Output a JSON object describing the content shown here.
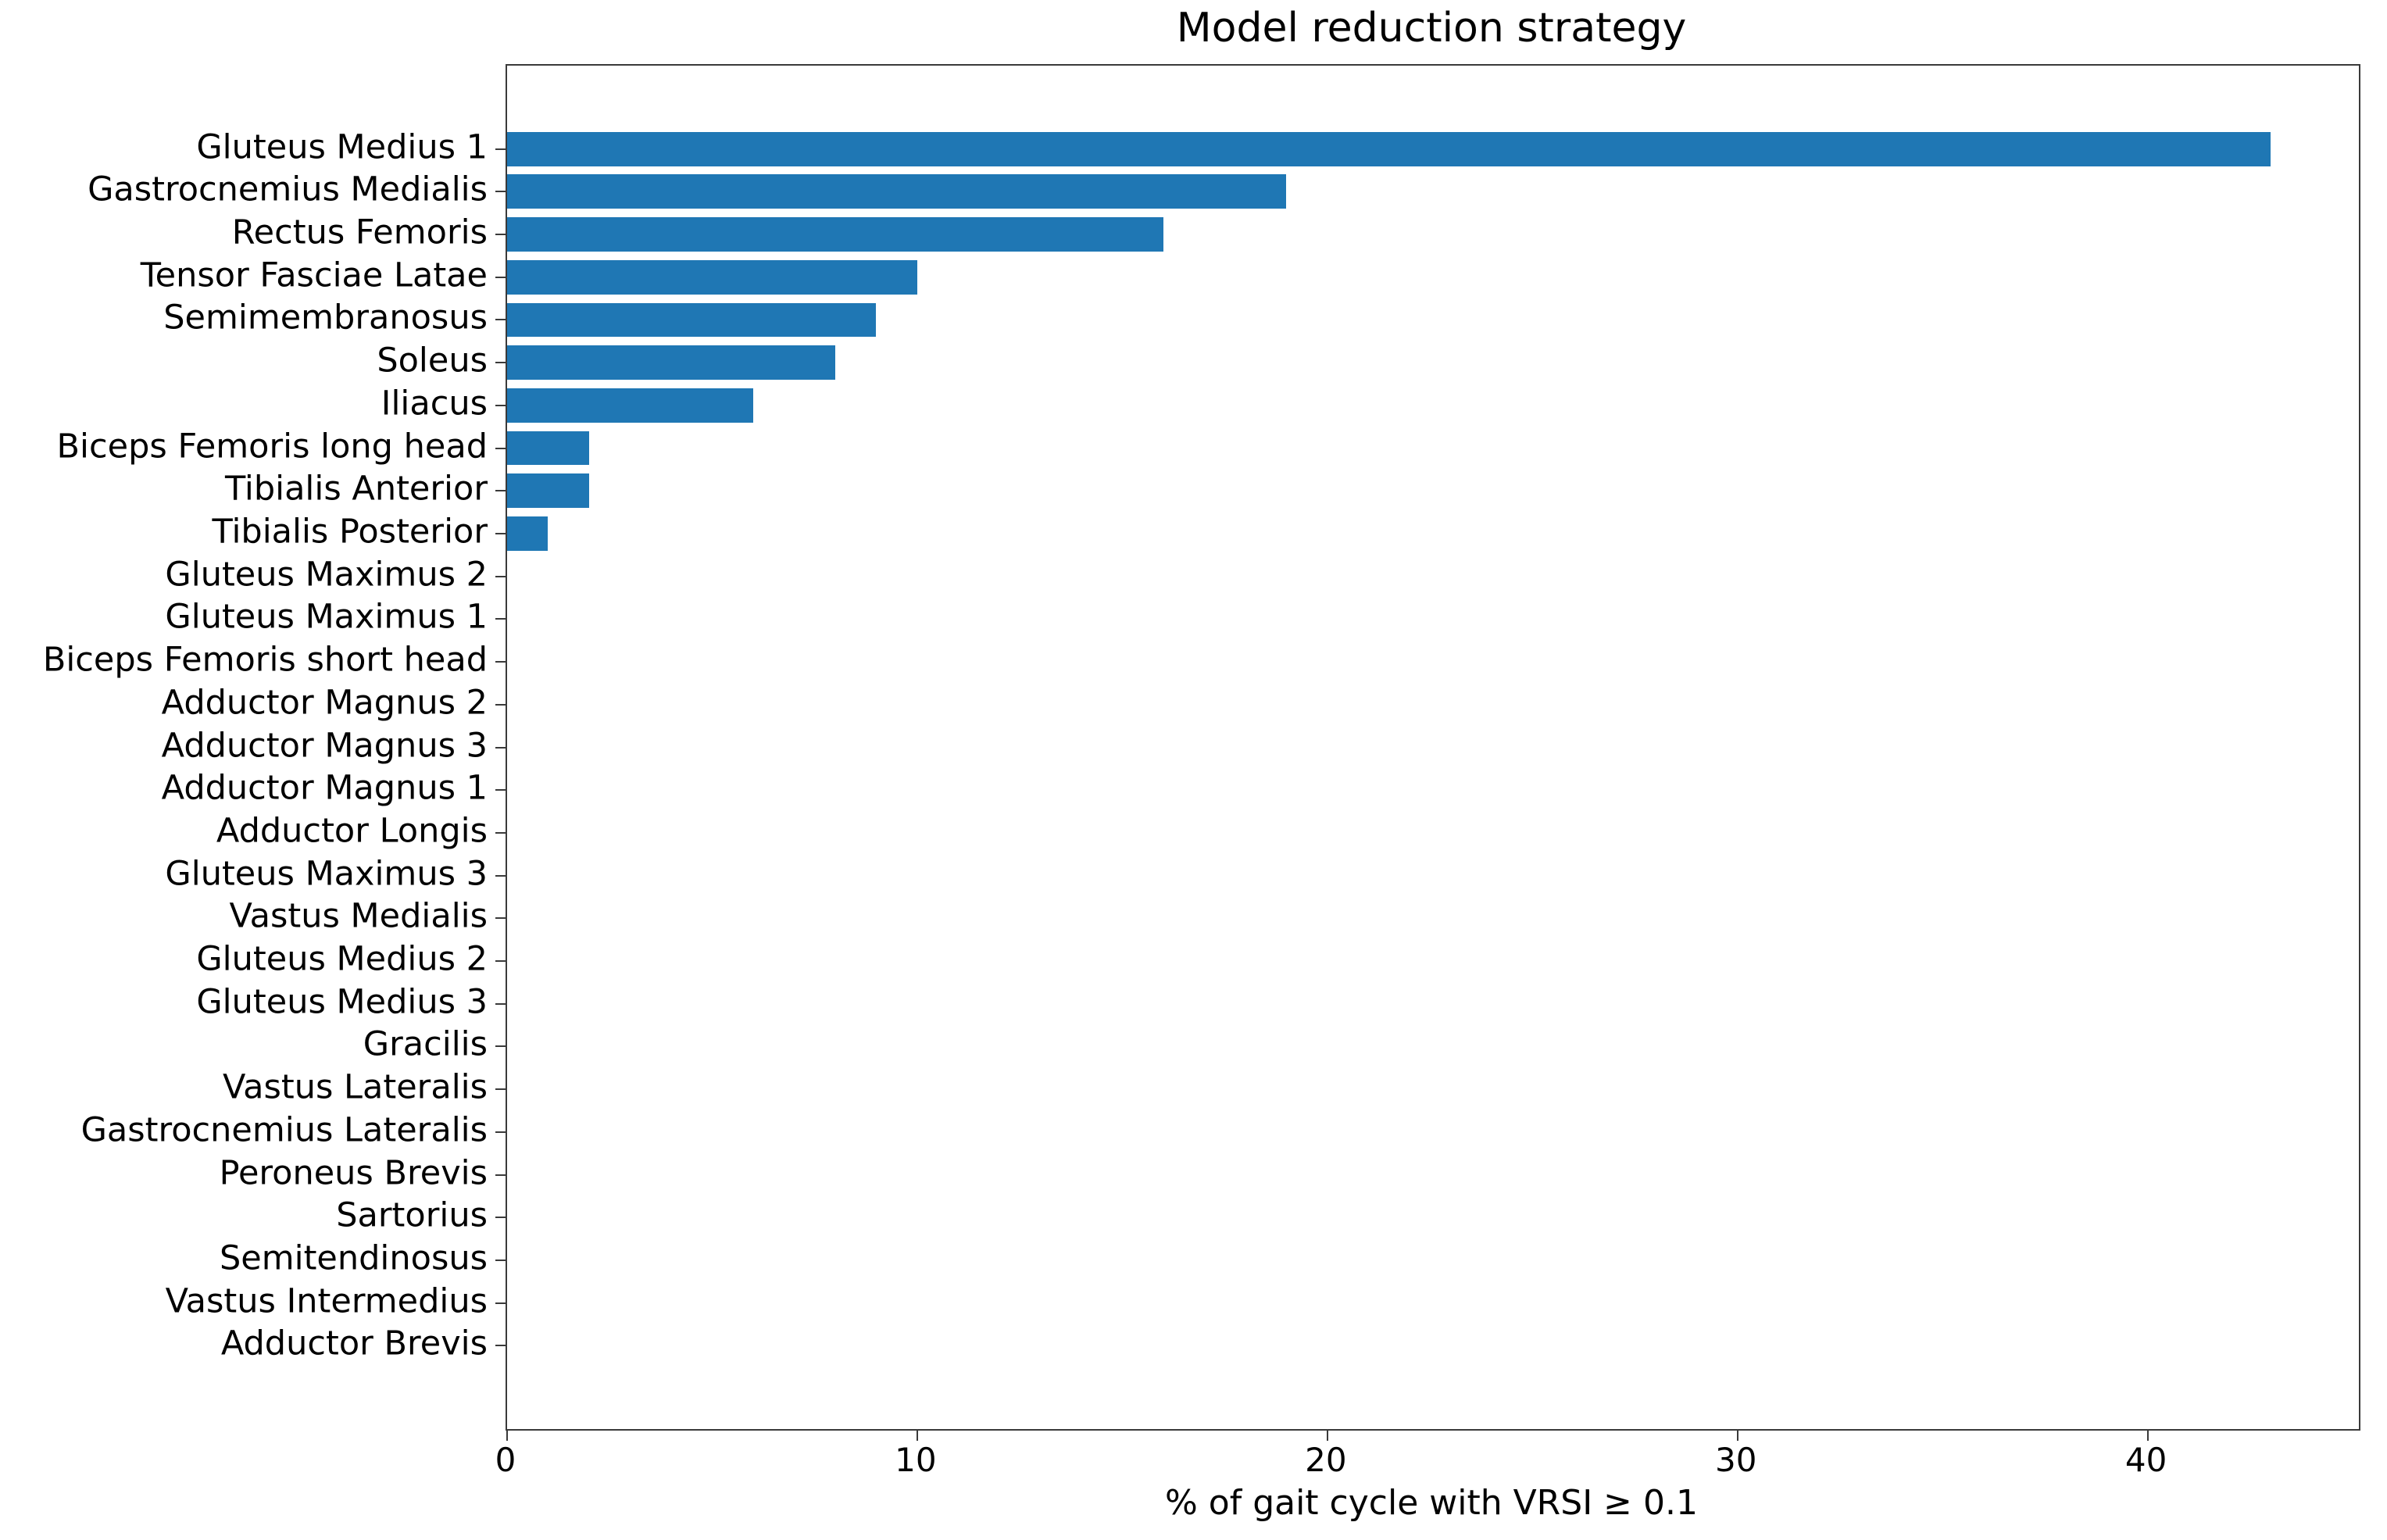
{
  "title": "Model reduction strategy",
  "x_axis_label": "% of gait cycle with VRSI ≥ 0.1",
  "chart_data": {
    "type": "bar",
    "orientation": "horizontal",
    "title": "Model reduction strategy",
    "xlabel": "% of gait cycle with VRSI ≥ 0.1",
    "ylabel": "",
    "categories": [
      "Gluteus Medius 1",
      "Gastrocnemius Medialis",
      "Rectus Femoris",
      "Tensor Fasciae Latae",
      "Semimembranosus",
      "Soleus",
      "Iliacus",
      "Biceps Femoris long head",
      "Tibialis Anterior",
      "Tibialis Posterior",
      "Gluteus Maximus 2",
      "Gluteus Maximus 1",
      "Biceps Femoris short head",
      "Adductor Magnus 2",
      "Adductor Magnus 3",
      "Adductor Magnus 1",
      "Adductor Longis",
      "Gluteus Maximus 3",
      "Vastus Medialis",
      "Gluteus Medius 2",
      "Gluteus Medius 3",
      "Gracilis",
      "Vastus Lateralis",
      "Gastrocnemius Lateralis",
      "Peroneus Brevis",
      "Sartorius",
      "Semitendinosus",
      "Vastus Intermedius",
      "Adductor Brevis"
    ],
    "values": [
      43,
      19,
      16,
      10,
      9,
      8,
      6,
      2,
      2,
      1,
      0,
      0,
      0,
      0,
      0,
      0,
      0,
      0,
      0,
      0,
      0,
      0,
      0,
      0,
      0,
      0,
      0,
      0,
      0
    ],
    "xlim": [
      0,
      45.15
    ],
    "x_ticks": [
      0,
      10,
      20,
      30,
      40
    ],
    "bar_color": "#1f77b4",
    "bar_height_fraction": 0.8,
    "grid": false,
    "legend": null
  }
}
